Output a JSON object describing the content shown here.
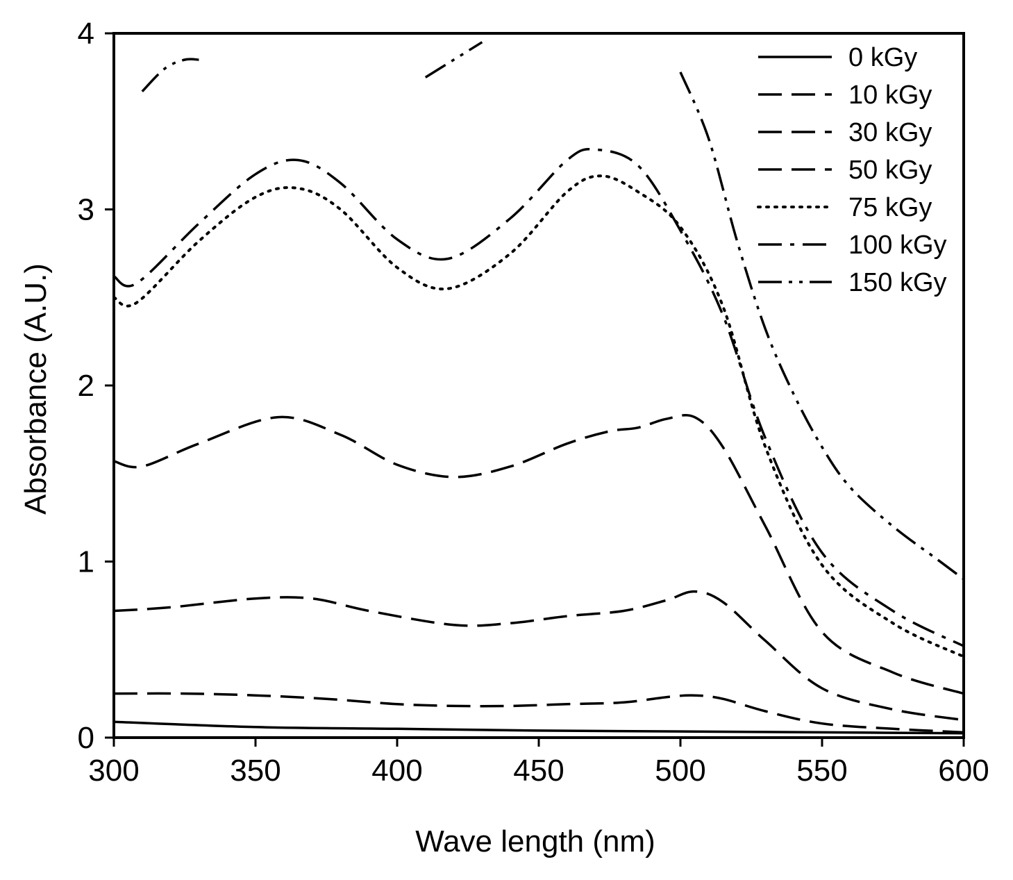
{
  "chart_data": {
    "type": "line",
    "xlabel": "Wave length (nm)",
    "ylabel": "Absorbance (A.U.)",
    "xlim": [
      300,
      600
    ],
    "ylim": [
      0,
      4
    ],
    "xticks": [
      300,
      350,
      400,
      450,
      500,
      550,
      600
    ],
    "yticks": [
      0,
      1,
      2,
      3,
      4
    ],
    "legend_position": "top-right",
    "series": [
      {
        "name": "0 kGy",
        "dash": "none",
        "x": [
          300,
          350,
          400,
          450,
          500,
          550,
          600
        ],
        "y": [
          0.09,
          0.06,
          0.05,
          0.04,
          0.035,
          0.03,
          0.025
        ]
      },
      {
        "name": "10 kGy",
        "dash": "long",
        "x": [
          300,
          325,
          350,
          375,
          400,
          420,
          440,
          460,
          480,
          495,
          505,
          515,
          530,
          550,
          575,
          600
        ],
        "y": [
          0.25,
          0.25,
          0.24,
          0.22,
          0.19,
          0.18,
          0.18,
          0.19,
          0.2,
          0.23,
          0.24,
          0.22,
          0.15,
          0.08,
          0.05,
          0.03
        ]
      },
      {
        "name": "30 kGy",
        "dash": "long",
        "x": [
          300,
          320,
          350,
          370,
          390,
          420,
          440,
          460,
          480,
          495,
          505,
          515,
          530,
          550,
          575,
          600
        ],
        "y": [
          0.72,
          0.74,
          0.79,
          0.79,
          0.72,
          0.64,
          0.65,
          0.69,
          0.72,
          0.78,
          0.83,
          0.77,
          0.55,
          0.28,
          0.16,
          0.1
        ]
      },
      {
        "name": "50 kGy",
        "dash": "long",
        "x": [
          300,
          310,
          330,
          358,
          380,
          400,
          420,
          440,
          460,
          475,
          485,
          495,
          505,
          515,
          530,
          550,
          575,
          600
        ],
        "y": [
          1.57,
          1.54,
          1.67,
          1.82,
          1.72,
          1.55,
          1.48,
          1.54,
          1.67,
          1.74,
          1.76,
          1.81,
          1.82,
          1.65,
          1.2,
          0.6,
          0.37,
          0.25
        ]
      },
      {
        "name": "75 kGy",
        "dash": "dotted",
        "x": [
          300,
          308,
          330,
          350,
          365,
          380,
          400,
          418,
          440,
          460,
          472,
          485,
          500,
          515,
          530,
          550,
          575,
          600
        ],
        "y": [
          2.5,
          2.47,
          2.82,
          3.07,
          3.12,
          3.0,
          2.67,
          2.55,
          2.75,
          3.1,
          3.19,
          3.1,
          2.9,
          2.45,
          1.65,
          0.98,
          0.65,
          0.46
        ]
      },
      {
        "name": "100 kGy",
        "dash": "dashdot",
        "x": [
          300,
          308,
          330,
          350,
          365,
          380,
          400,
          418,
          440,
          460,
          470,
          485,
          500,
          515,
          530,
          550,
          575,
          600
        ],
        "y": [
          2.62,
          2.58,
          2.92,
          3.2,
          3.28,
          3.15,
          2.83,
          2.72,
          2.95,
          3.28,
          3.34,
          3.25,
          2.88,
          2.4,
          1.7,
          1.05,
          0.72,
          0.52
        ]
      },
      {
        "name": "150 kGy",
        "dash": "dashdotdot",
        "x": [
          500,
          510,
          520,
          530,
          540,
          550,
          560,
          575,
          590,
          600
        ],
        "y": [
          3.78,
          3.4,
          2.82,
          2.32,
          1.95,
          1.65,
          1.42,
          1.2,
          1.02,
          0.9
        ]
      },
      {
        "name": "150 kGy fragment 1",
        "legend": false,
        "dash": "dashdotdot",
        "x": [
          310,
          318,
          325,
          330
        ],
        "y": [
          3.67,
          3.8,
          3.85,
          3.85
        ]
      },
      {
        "name": "150 kGy fragment 2",
        "legend": false,
        "dash": "dashdotdot",
        "x": [
          410,
          420,
          430
        ],
        "y": [
          3.75,
          3.85,
          3.95
        ]
      }
    ]
  }
}
